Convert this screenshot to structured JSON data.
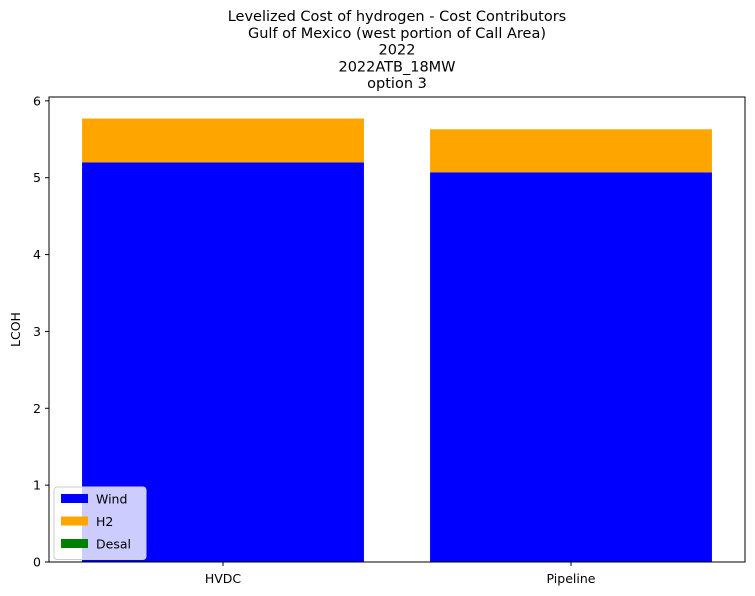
{
  "chart_data": {
    "type": "bar",
    "stacked": true,
    "title_lines": [
      "Levelized Cost of hydrogen - Cost Contributors",
      "Gulf of Mexico (west portion of Call Area)",
      "2022",
      "2022ATB_18MW",
      "option 3"
    ],
    "ylabel": "LCOH",
    "xlabel": "",
    "categories": [
      "HVDC",
      "Pipeline"
    ],
    "series": [
      {
        "name": "Wind",
        "color": "#0000ff",
        "values": [
          5.2,
          5.07
        ]
      },
      {
        "name": "H2",
        "color": "#ffa500",
        "values": [
          0.57,
          0.56
        ]
      },
      {
        "name": "Desal",
        "color": "#008000",
        "values": [
          0.0,
          0.0
        ]
      }
    ],
    "ylim": [
      0,
      6.05
    ],
    "yticks": [
      0,
      1,
      2,
      3,
      4,
      5,
      6
    ],
    "grid": false,
    "legend_position": "lower-left"
  }
}
